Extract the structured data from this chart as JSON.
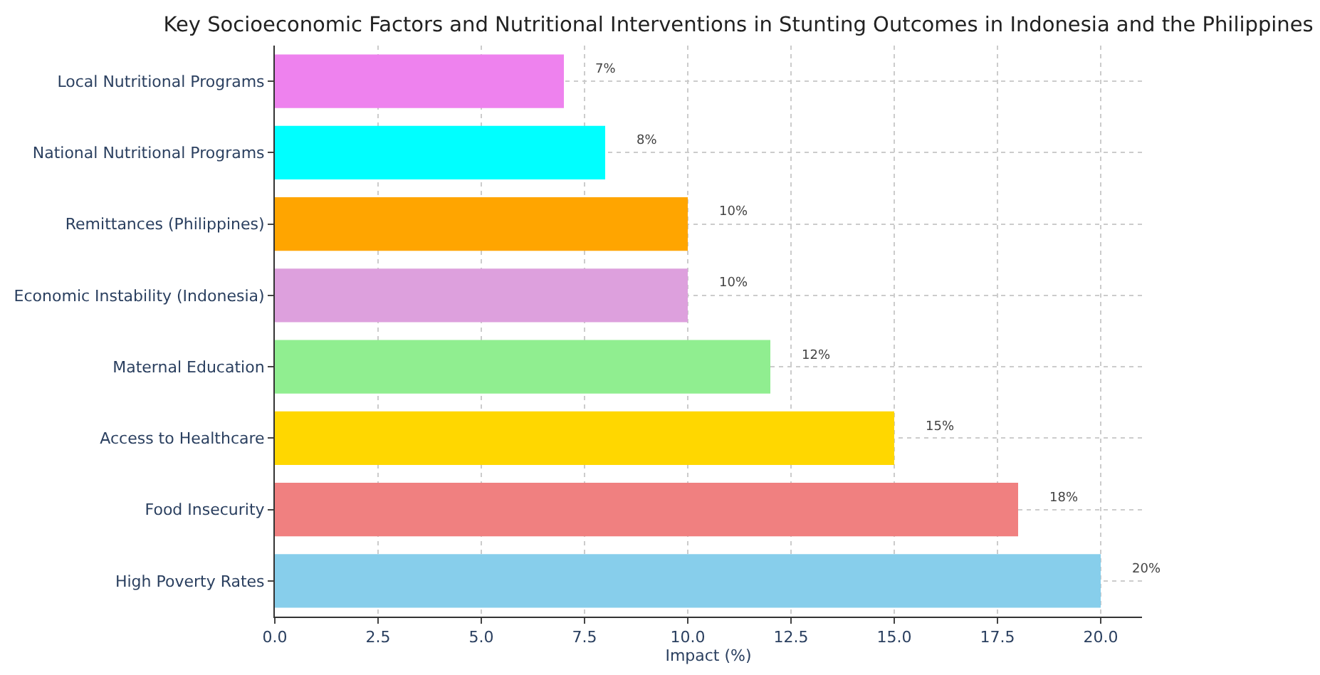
{
  "chart_data": {
    "type": "bar",
    "orientation": "horizontal",
    "title": "Key Socioeconomic Factors and Nutritional Interventions in Stunting Outcomes in Indonesia and the Philippines",
    "xlabel": "Impact (%)",
    "categories": [
      "Local Nutritional Programs",
      "National Nutritional Programs",
      "Remittances (Philippines)",
      "Economic Instability (Indonesia)",
      "Maternal Education",
      "Access to Healthcare",
      "Food Insecurity",
      "High Poverty Rates"
    ],
    "values": [
      7,
      8,
      10,
      10,
      12,
      15,
      18,
      20
    ],
    "value_labels": [
      "7%",
      "8%",
      "10%",
      "10%",
      "12%",
      "15%",
      "18%",
      "20%"
    ],
    "colors": [
      "#ee82ee",
      "#00ffff",
      "#ffa500",
      "#dda0dd",
      "#90ee90",
      "#ffd700",
      "#f08080",
      "#87ceeb"
    ],
    "xlim": [
      0,
      21
    ],
    "xticks": [
      {
        "value": 0,
        "label": "0.0"
      },
      {
        "value": 2.5,
        "label": "2.5"
      },
      {
        "value": 5,
        "label": "5.0"
      },
      {
        "value": 7.5,
        "label": "7.5"
      },
      {
        "value": 10,
        "label": "10.0"
      },
      {
        "value": 12.5,
        "label": "12.5"
      },
      {
        "value": 15,
        "label": "15.0"
      },
      {
        "value": 17.5,
        "label": "17.5"
      },
      {
        "value": 20,
        "label": "20.0"
      }
    ],
    "grid": true
  }
}
